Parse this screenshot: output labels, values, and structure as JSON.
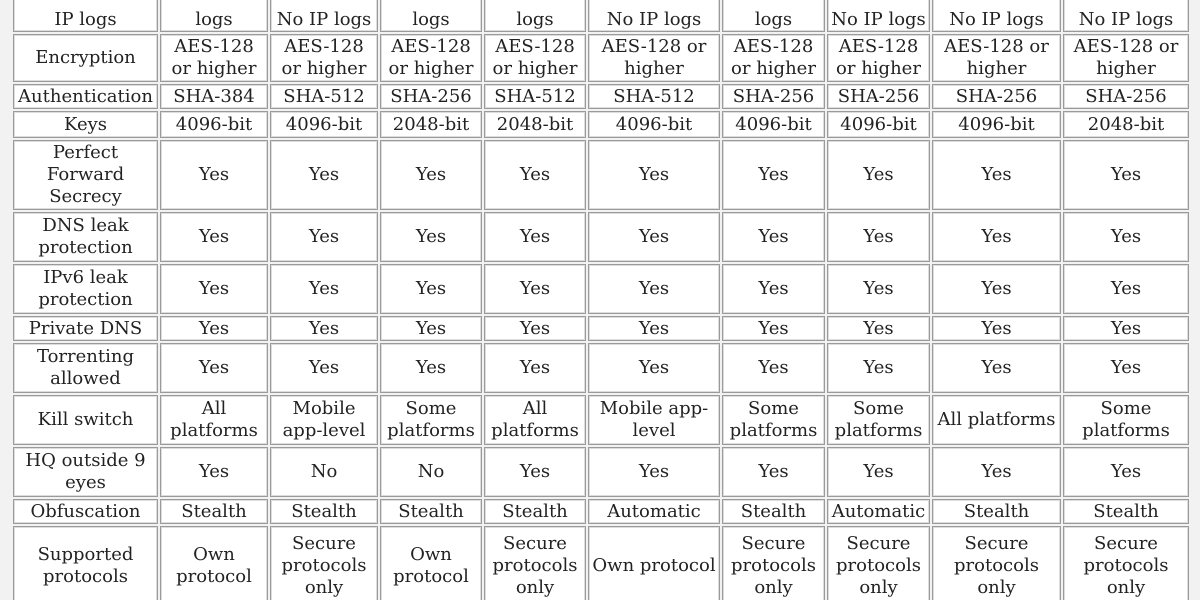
{
  "table": {
    "rows": [
      [
        "IP logs",
        "logs",
        "No IP logs",
        "logs",
        "logs",
        "No IP logs",
        "logs",
        "No IP logs",
        "No IP logs",
        "No IP logs"
      ],
      [
        "Encryption",
        "AES-128 or higher",
        "AES-128 or higher",
        "AES-128 or higher",
        "AES-128 or higher",
        "AES-128 or higher",
        "AES-128 or higher",
        "AES-128 or higher",
        "AES-128 or higher",
        "AES-128 or higher"
      ],
      [
        "Authentication",
        "SHA-384",
        "SHA-512",
        "SHA-256",
        "SHA-512",
        "SHA-512",
        "SHA-256",
        "SHA-256",
        "SHA-256",
        "SHA-256"
      ],
      [
        "Keys",
        "4096-bit",
        "4096-bit",
        "2048-bit",
        "2048-bit",
        "4096-bit",
        "4096-bit",
        "4096-bit",
        "4096-bit",
        "2048-bit"
      ],
      [
        "Perfect Forward Secrecy",
        "Yes",
        "Yes",
        "Yes",
        "Yes",
        "Yes",
        "Yes",
        "Yes",
        "Yes",
        "Yes"
      ],
      [
        "DNS leak protection",
        "Yes",
        "Yes",
        "Yes",
        "Yes",
        "Yes",
        "Yes",
        "Yes",
        "Yes",
        "Yes"
      ],
      [
        "IPv6 leak protection",
        "Yes",
        "Yes",
        "Yes",
        "Yes",
        "Yes",
        "Yes",
        "Yes",
        "Yes",
        "Yes"
      ],
      [
        "Private DNS",
        "Yes",
        "Yes",
        "Yes",
        "Yes",
        "Yes",
        "Yes",
        "Yes",
        "Yes",
        "Yes"
      ],
      [
        "Torrenting allowed",
        "Yes",
        "Yes",
        "Yes",
        "Yes",
        "Yes",
        "Yes",
        "Yes",
        "Yes",
        "Yes"
      ],
      [
        "Kill switch",
        "All platforms",
        "Mobile app-level",
        "Some platforms",
        "All platforms",
        "Mobile app-level",
        "Some platforms",
        "Some platforms",
        "All platforms",
        "Some platforms"
      ],
      [
        "HQ outside 9 eyes",
        "Yes",
        "No",
        "No",
        "Yes",
        "Yes",
        "Yes",
        "Yes",
        "Yes",
        "Yes"
      ],
      [
        "Obfuscation",
        "Stealth",
        "Stealth",
        "Stealth",
        "Stealth",
        "Automatic",
        "Stealth",
        "Automatic",
        "Stealth",
        "Stealth"
      ],
      [
        "Supported protocols",
        "Own protocol",
        "Secure protocols only",
        "Own protocol",
        "Secure protocols only",
        "Own protocol",
        "Secure protocols only",
        "Secure protocols only",
        "Secure protocols only",
        "Secure protocols only"
      ]
    ]
  }
}
